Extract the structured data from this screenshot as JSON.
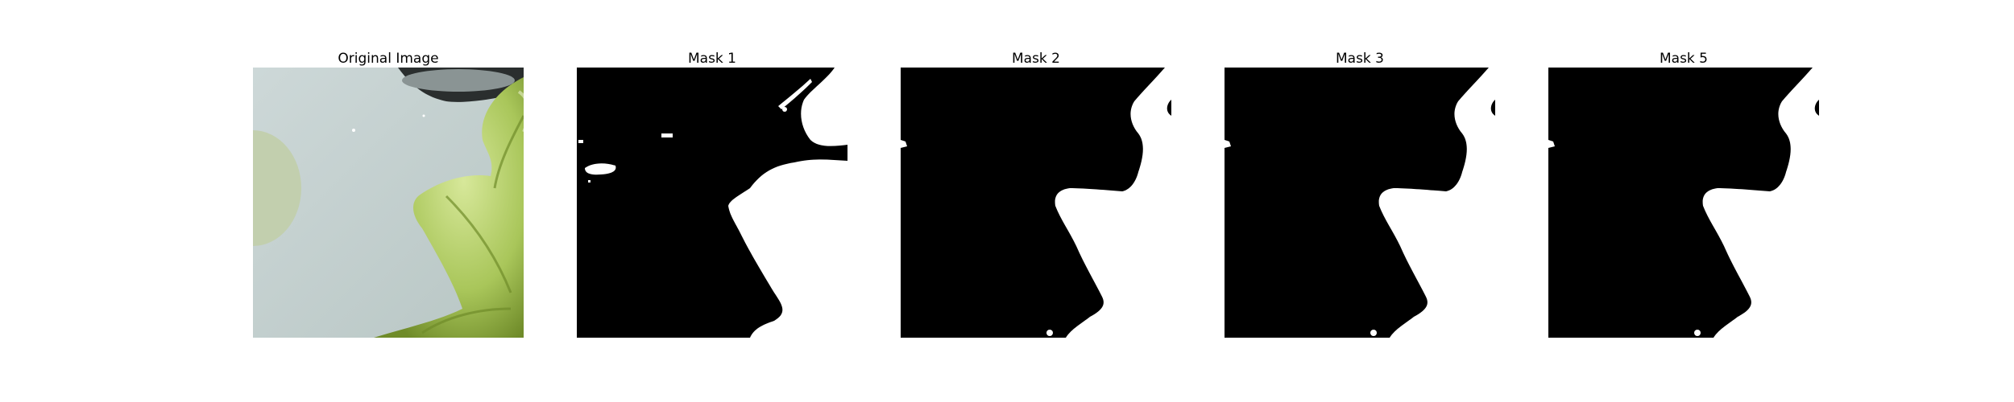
{
  "panels": [
    {
      "title": "Original Image",
      "kind": "photo"
    },
    {
      "title": "Mask 1",
      "kind": "mask"
    },
    {
      "title": "Mask 2",
      "kind": "mask"
    },
    {
      "title": "Mask 3",
      "kind": "mask"
    },
    {
      "title": "Mask 5",
      "kind": "mask"
    }
  ],
  "colors": {
    "mask_background": "#000000",
    "mask_foreground": "#ffffff",
    "photo_surface": "#c4d0d0",
    "photo_leaf": "#b9d26c",
    "photo_leaf_dark": "#708c2a"
  }
}
